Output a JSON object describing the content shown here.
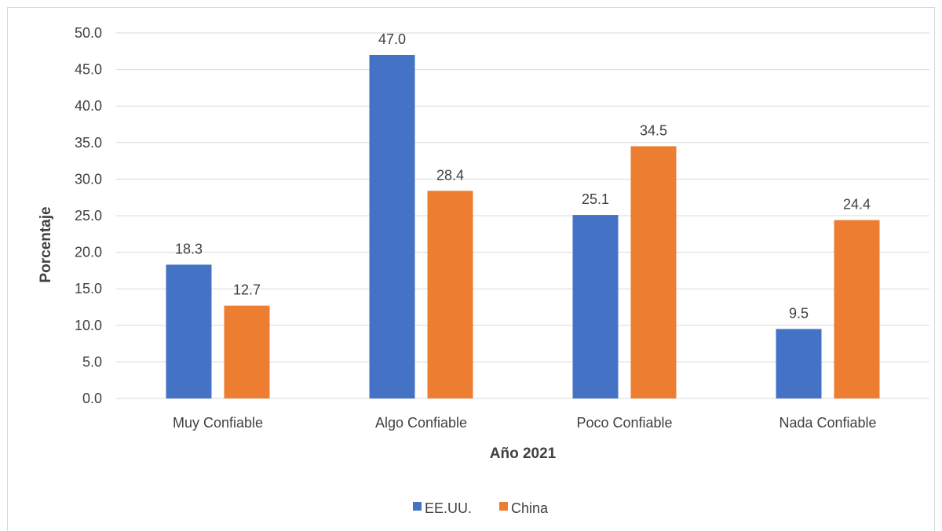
{
  "chart_data": {
    "type": "bar",
    "categories": [
      "Muy Confiable",
      "Algo Confiable",
      "Poco Confiable",
      "Nada Confiable"
    ],
    "series": [
      {
        "name": "EE.UU.",
        "values": [
          18.3,
          47.0,
          25.1,
          9.5
        ],
        "color": "#4472C4"
      },
      {
        "name": "China",
        "values": [
          12.7,
          28.4,
          34.5,
          24.4
        ],
        "color": "#ED7D31"
      }
    ],
    "xlabel": "Año 2021",
    "ylabel": "Porcentaje",
    "ylim": [
      0,
      50
    ],
    "yticks": [
      "0.0",
      "5.0",
      "10.0",
      "15.0",
      "20.0",
      "25.0",
      "30.0",
      "35.0",
      "40.0",
      "45.0",
      "50.0"
    ],
    "grid": true,
    "legend_position": "bottom",
    "gridline_color": "#d9d9d9",
    "text_color": "#404040"
  }
}
